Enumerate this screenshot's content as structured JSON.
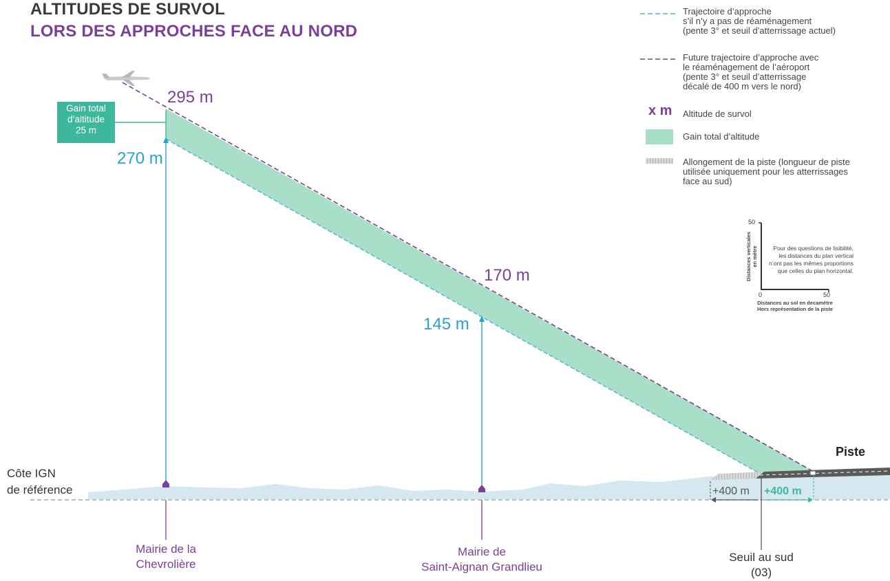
{
  "title": {
    "line1": "ALTITUDES DE SURVOL",
    "line2": "LORS DES APPROCHES FACE AU NORD"
  },
  "legend": {
    "current_trajectory": "Trajectoire d’approche\ns’il n’y a pas de réaménagement\n(pente 3° et seuil d’atterrissage actuel)",
    "future_trajectory": "Future trajectoire d’approche avec\nle réaménagement de l’aéroport\n(pente 3° et seuil d’atterrissage\ndécalé de 400 m vers le nord)",
    "altitude_symbol": "x m",
    "altitude_label": "Altitude de survol",
    "gain_label": "Gain total d’altitude",
    "runway_extension_label": "Allongement de la piste (longueur de piste\nutilisée uniquement pour les atterrissages\nface au sud)"
  },
  "scale_inset": {
    "y_max": "50",
    "y_axis_label": "Distances verticales\nen mètre",
    "x_min": "0",
    "x_max": "50",
    "note": "Pour des questions de lisibilité,\nles distances du plan vertical\nn’ont pas les mêmes proportions\nque celles du plan horizontal.",
    "footnote": "Distances au sol en decamètre\nHors représentation de la piste"
  },
  "gain_box": "Gain total\nd’altitude\n25 m",
  "altitudes": {
    "chevroliere_future": "295 m",
    "chevroliere_current": "270 m",
    "saint_aignan_future": "170 m",
    "saint_aignan_current": "145 m"
  },
  "ground": {
    "reference_label": "Côte IGN\nde référence",
    "runway_label": "Piste",
    "extension_left": "+400 m",
    "extension_right": "+400 m",
    "threshold_label": "Seuil au sud\n(03)"
  },
  "places": {
    "chevroliere": "Mairie de la\nChevrolière",
    "saint_aignan": "Mairie de\nSaint-Aignan Grandlieu"
  },
  "colors": {
    "current_trajectory": "#4fb3d9",
    "future_trajectory": "#7b3f98",
    "gain_fill": "#a9dfc9",
    "gain_box": "#3db89c",
    "ground": "#d5e8ef",
    "runway": "#5a5a5a",
    "place_label": "#7b3f98",
    "altitude_current_text": "#2aa1d3",
    "altitude_future_text": "#7b3f98"
  }
}
